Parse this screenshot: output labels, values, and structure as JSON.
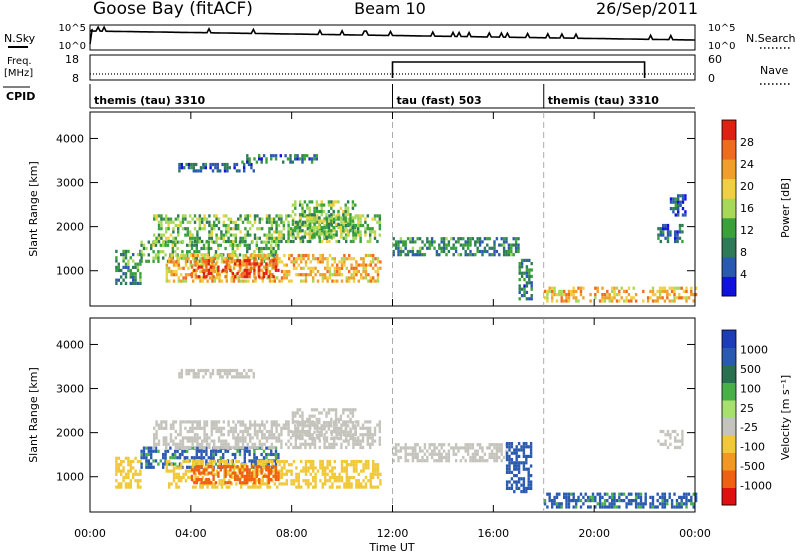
{
  "header": {
    "radar_name": "Goose Bay (fitACF)",
    "beam": "Beam 10",
    "date": "26/Sep/2011"
  },
  "ancillary": {
    "nsky_label": "N.Sky",
    "nsky_ticks": [
      "10^5",
      "10^0"
    ],
    "nsearch_label": "N.Search",
    "nsearch_ticks": [
      "10^5",
      "10^0"
    ],
    "freq_label_line1": "Freq.",
    "freq_label_line2": "[MHz]",
    "freq_ticks": [
      "18",
      "8"
    ],
    "nave_label": "Nave",
    "nave_ticks": [
      "60",
      "0"
    ],
    "cpid_label": "CPID",
    "cpid_segments": [
      {
        "start_h": 0,
        "end_h": 12,
        "label": "themis (tau) 3310"
      },
      {
        "start_h": 12,
        "end_h": 18,
        "label": "tau (fast) 503"
      },
      {
        "start_h": 18,
        "end_h": 24,
        "label": "themis (tau) 3310"
      }
    ],
    "nave_step": {
      "start_h": 12,
      "end_h": 22,
      "low": 0,
      "high": 48
    }
  },
  "x_axis": {
    "label": "Time UT",
    "ticks": [
      "00:00",
      "04:00",
      "08:00",
      "12:00",
      "16:00",
      "20:00",
      "00:00"
    ]
  },
  "colors": {
    "power_scale": [
      "#1010e0",
      "#2a5ab0",
      "#2e7a58",
      "#3aa03a",
      "#a8d85a",
      "#f0d040",
      "#f0a028",
      "#f06a20",
      "#e02010"
    ],
    "velocity_scale": [
      "#e01010",
      "#f06010",
      "#f09820",
      "#f0c838",
      "#c4c4bc",
      "#a8e070",
      "#48b048",
      "#2a7050",
      "#2a5ab0",
      "#1c3cb8"
    ]
  },
  "chart_data": [
    {
      "type": "heatmap",
      "title": "",
      "xlabel": "",
      "ylabel": "Slant Range [km]",
      "xlim": [
        0,
        24
      ],
      "ylim": [
        200,
        4600
      ],
      "y_ticks": [
        1000,
        2000,
        3000,
        4000
      ],
      "colorbar": {
        "label": "Power [dB]",
        "ticks": [
          "4",
          "8",
          "12",
          "16",
          "20",
          "24",
          "28"
        ],
        "range": [
          0,
          30
        ]
      },
      "echo_regions": [
        {
          "t0": 1.0,
          "t1": 2.0,
          "r0": 750,
          "r1": 1500,
          "v": 10
        },
        {
          "t0": 2.0,
          "t1": 7.5,
          "r0": 1250,
          "r1": 1750,
          "v": 12
        },
        {
          "t0": 3.0,
          "t1": 11.5,
          "r0": 800,
          "r1": 1400,
          "v": 20
        },
        {
          "t0": 4.0,
          "t1": 7.5,
          "r0": 900,
          "r1": 1300,
          "v": 27
        },
        {
          "t0": 2.5,
          "t1": 11.5,
          "r0": 1700,
          "r1": 2300,
          "v": 13
        },
        {
          "t0": 3.5,
          "t1": 6.5,
          "r0": 3300,
          "r1": 3500,
          "v": 6
        },
        {
          "t0": 6.0,
          "t1": 9.0,
          "r0": 3500,
          "r1": 3700,
          "v": 7
        },
        {
          "t0": 8.0,
          "t1": 10.5,
          "r0": 1800,
          "r1": 2600,
          "v": 14
        },
        {
          "t0": 12.0,
          "t1": 17.0,
          "r0": 1400,
          "r1": 1800,
          "v": 9
        },
        {
          "t0": 17.0,
          "t1": 17.5,
          "r0": 400,
          "r1": 1300,
          "v": 8
        },
        {
          "t0": 18.0,
          "t1": 24.0,
          "r0": 350,
          "r1": 700,
          "v": 20
        },
        {
          "t0": 22.5,
          "t1": 23.5,
          "r0": 1700,
          "r1": 2100,
          "v": 7
        },
        {
          "t0": 23.0,
          "t1": 23.6,
          "r0": 2300,
          "r1": 2800,
          "v": 6
        }
      ]
    },
    {
      "type": "heatmap",
      "title": "",
      "xlabel": "Time UT",
      "ylabel": "Slant Range [km]",
      "xlim": [
        0,
        24
      ],
      "ylim": [
        200,
        4600
      ],
      "y_ticks": [
        1000,
        2000,
        3000,
        4000
      ],
      "colorbar": {
        "label": "Velocity [m s⁻¹]",
        "ticks": [
          "1000",
          "500",
          "100",
          "25",
          "-25",
          "-100",
          "-500",
          "-1000"
        ]
      },
      "echo_regions": [
        {
          "t0": 1.0,
          "t1": 2.0,
          "r0": 800,
          "r1": 1500,
          "v": -80
        },
        {
          "t0": 2.0,
          "t1": 7.5,
          "r0": 1250,
          "r1": 1700,
          "v": 120
        },
        {
          "t0": 3.0,
          "t1": 11.5,
          "r0": 800,
          "r1": 1400,
          "v": -60
        },
        {
          "t0": 4.0,
          "t1": 7.5,
          "r0": 900,
          "r1": 1300,
          "v": -150
        },
        {
          "t0": 2.5,
          "t1": 11.5,
          "r0": 1700,
          "r1": 2300,
          "v": 0
        },
        {
          "t0": 3.5,
          "t1": 6.5,
          "r0": 3300,
          "r1": 3500,
          "v": 0
        },
        {
          "t0": 8.0,
          "t1": 10.5,
          "r0": 1900,
          "r1": 2600,
          "v": 0
        },
        {
          "t0": 12.0,
          "t1": 16.5,
          "r0": 1400,
          "r1": 1800,
          "v": 0
        },
        {
          "t0": 16.5,
          "t1": 17.5,
          "r0": 700,
          "r1": 1800,
          "v": 300
        },
        {
          "t0": 18.0,
          "t1": 24.0,
          "r0": 350,
          "r1": 700,
          "v": 120
        },
        {
          "t0": 22.5,
          "t1": 23.5,
          "r0": 1700,
          "r1": 2100,
          "v": 0
        }
      ]
    }
  ]
}
